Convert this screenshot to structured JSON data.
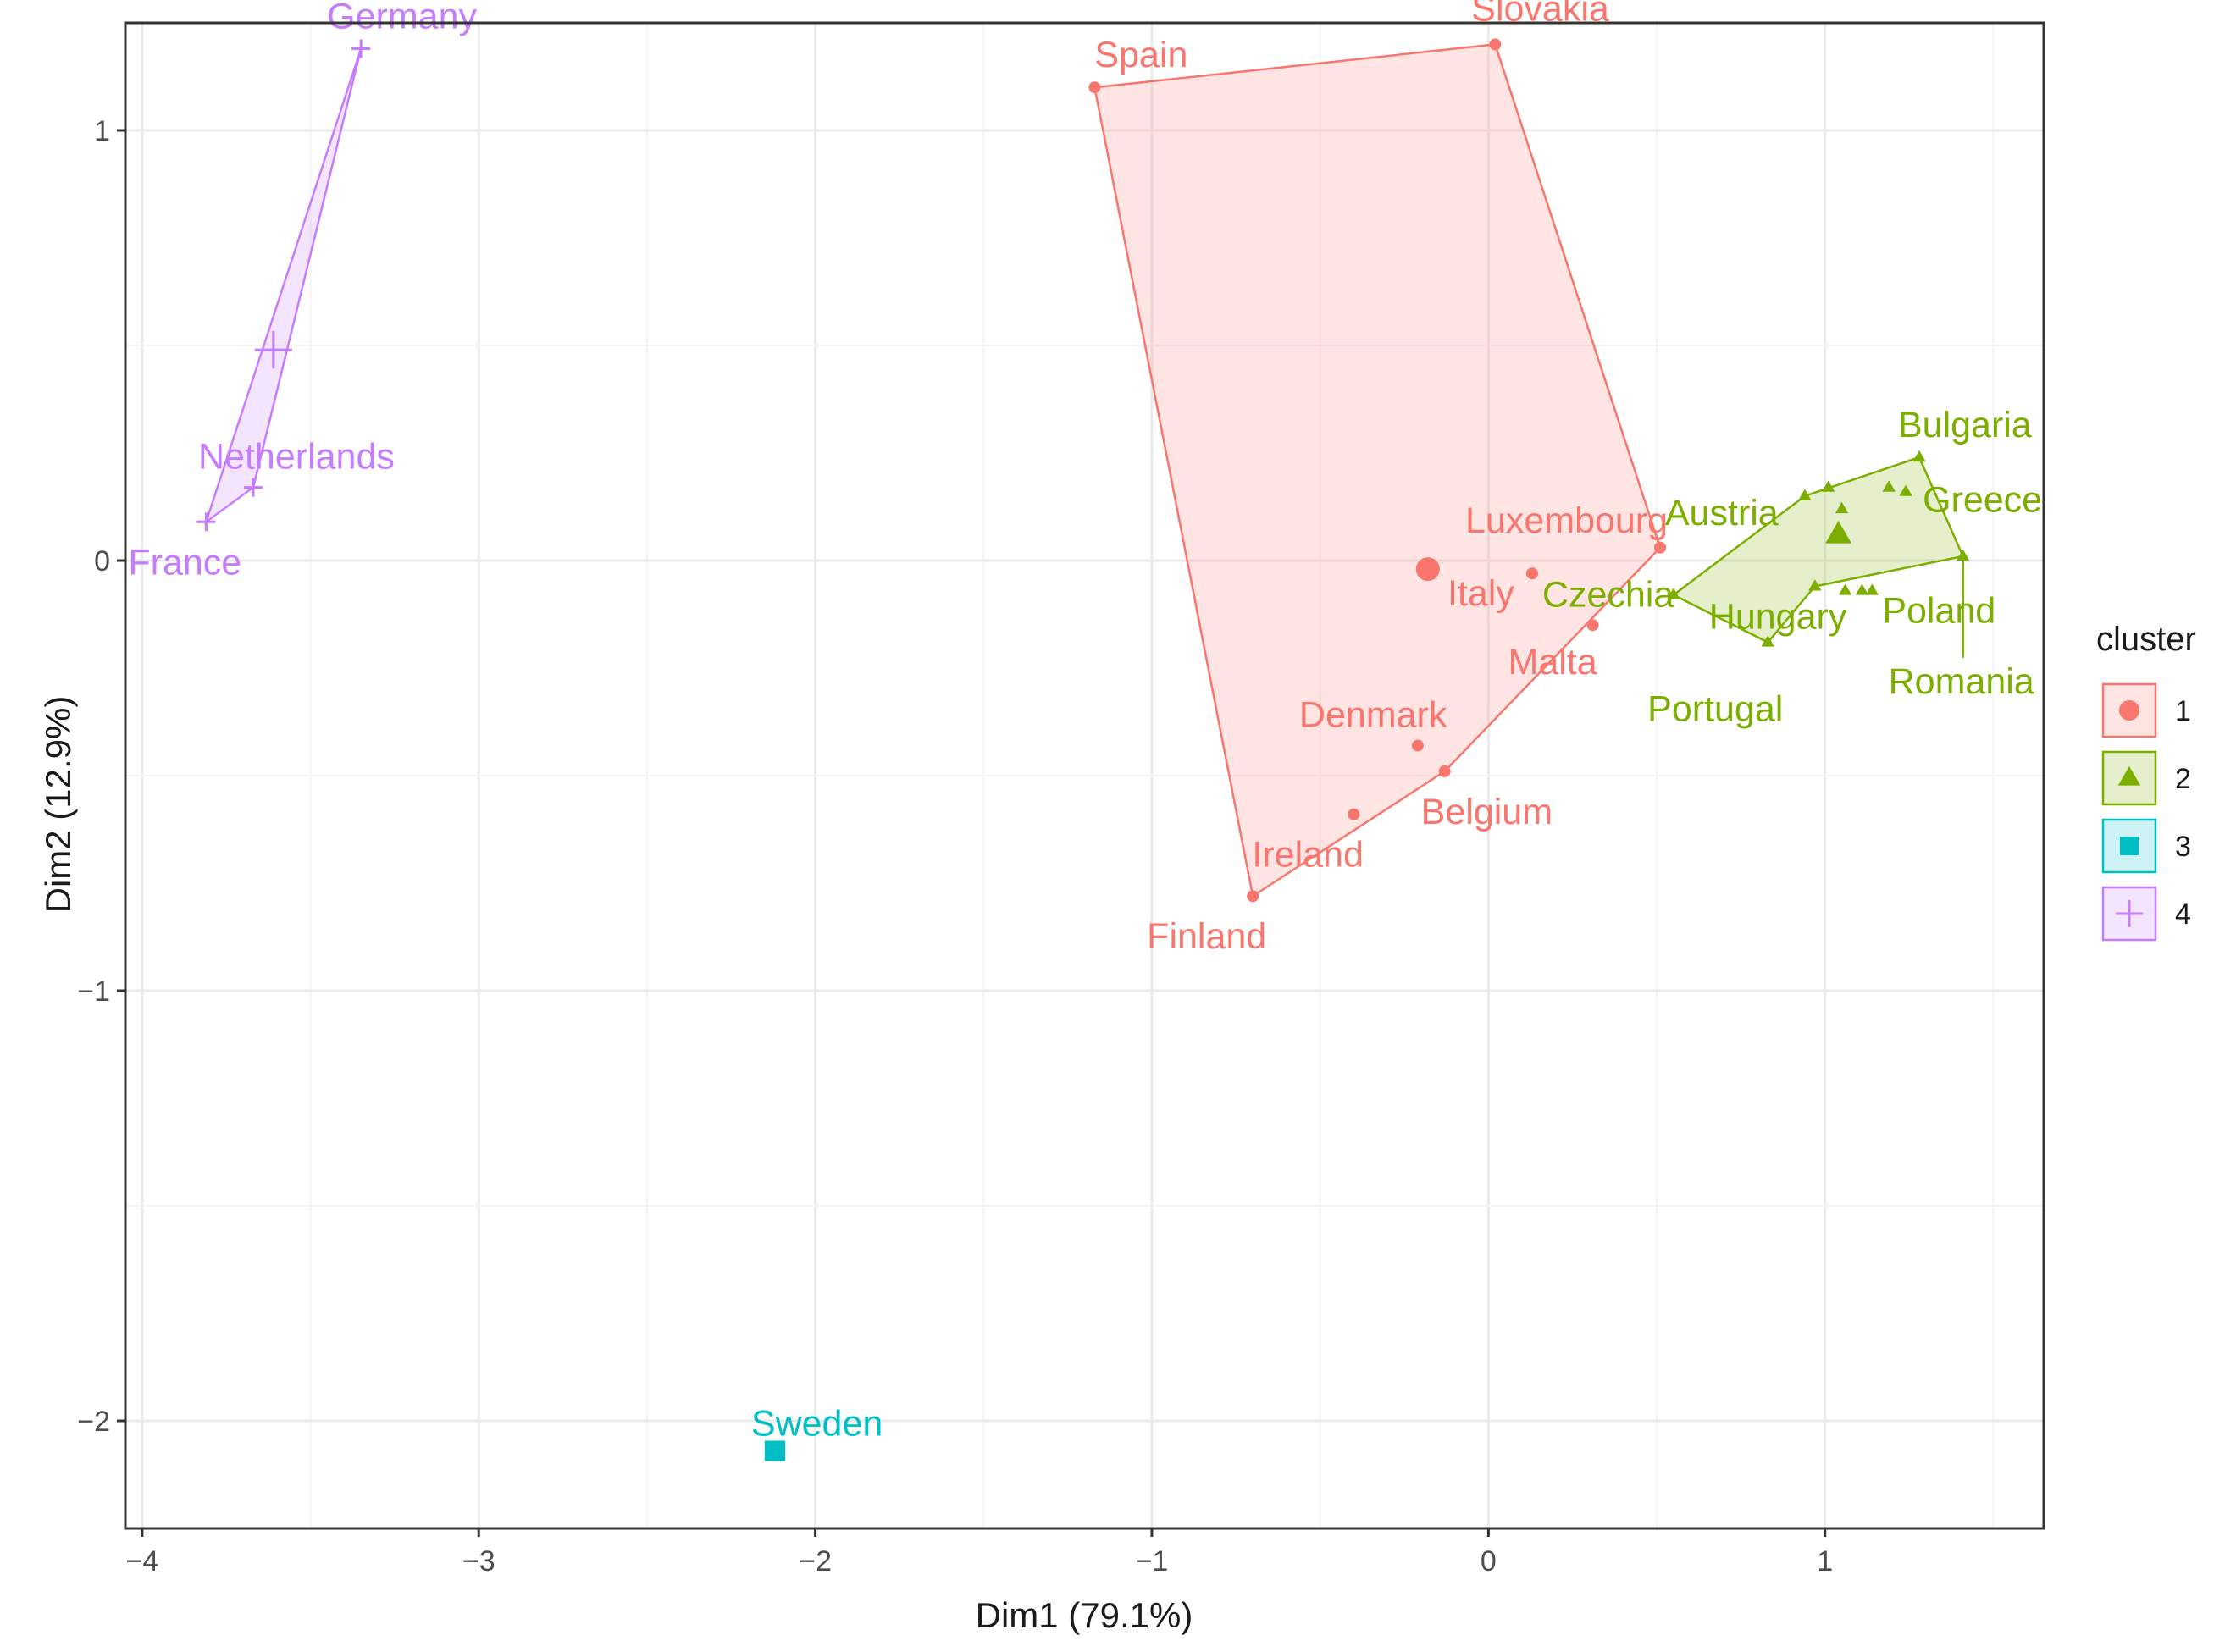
{
  "chart_data": {
    "type": "scatter",
    "title": "",
    "xlabel": "Dim1 (79.1%)",
    "ylabel": "Dim2 (12.9%)",
    "xlim": [
      -4.05,
      1.65
    ],
    "ylim": [
      -2.25,
      1.25
    ],
    "x_ticks": [
      -4,
      -3,
      -2,
      -1,
      0,
      1
    ],
    "y_ticks": [
      -2,
      -1,
      0,
      1
    ],
    "x_tick_labels": [
      "−4",
      "−3",
      "−2",
      "−1",
      "0",
      "1"
    ],
    "y_tick_labels": [
      "−2",
      "−1",
      "0",
      "1"
    ],
    "grid": true,
    "legend": {
      "title": "cluster",
      "position": "right",
      "entries": [
        {
          "label": "1",
          "shape": "circle",
          "color": "#F8766D"
        },
        {
          "label": "2",
          "shape": "triangle",
          "color": "#7CAE00"
        },
        {
          "label": "3",
          "shape": "square",
          "color": "#00BFC4"
        },
        {
          "label": "4",
          "shape": "cross",
          "color": "#C77CFF"
        }
      ]
    },
    "series": [
      {
        "name": "1",
        "color": "#F8766D",
        "shape": "circle",
        "hull": [
          "Spain",
          "Slovakia",
          "Luxembourg",
          "Belgium",
          "Finland"
        ],
        "centroid": {
          "x": -0.18,
          "y": -0.02
        },
        "points": [
          {
            "label": "Spain",
            "x": -1.17,
            "y": 1.1
          },
          {
            "label": "Slovakia",
            "x": 0.02,
            "y": 1.2
          },
          {
            "label": "Luxembourg",
            "x": 0.51,
            "y": 0.03
          },
          {
            "label": "Italy",
            "x": 0.13,
            "y": -0.03
          },
          {
            "label": "Malta",
            "x": 0.31,
            "y": -0.15
          },
          {
            "label": "Denmark",
            "x": -0.21,
            "y": -0.43
          },
          {
            "label": "Belgium",
            "x": -0.13,
            "y": -0.49
          },
          {
            "label": "Ireland",
            "x": -0.4,
            "y": -0.59
          },
          {
            "label": "Finland",
            "x": -0.7,
            "y": -0.78
          }
        ]
      },
      {
        "name": "2",
        "color": "#7CAE00",
        "shape": "triangle",
        "hull": [
          "Czechia",
          "Austria",
          "Bulgaria",
          "Romania",
          "Hungary",
          "Portugal"
        ],
        "centroid": {
          "x": 1.04,
          "y": 0.06
        },
        "points": [
          {
            "label": "Bulgaria",
            "x": 1.28,
            "y": 0.24
          },
          {
            "label": "Greece",
            "x": 1.24,
            "y": 0.16
          },
          {
            "label": "Austria",
            "x": 0.94,
            "y": 0.15
          },
          {
            "label": "Poland",
            "x": 1.14,
            "y": -0.07
          },
          {
            "label": "Czechia",
            "x": 0.55,
            "y": -0.08
          },
          {
            "label": "Hungary",
            "x": 0.97,
            "y": -0.06
          },
          {
            "label": "Portugal",
            "x": 0.83,
            "y": -0.19
          },
          {
            "label": "Romania",
            "x": 1.41,
            "y": 0.01
          },
          {
            "label": "",
            "x": 1.01,
            "y": 0.17
          },
          {
            "label": "",
            "x": 1.05,
            "y": 0.12
          },
          {
            "label": "",
            "x": 1.19,
            "y": 0.17
          },
          {
            "label": "",
            "x": 1.11,
            "y": -0.07
          },
          {
            "label": "",
            "x": 1.06,
            "y": -0.07
          }
        ]
      },
      {
        "name": "3",
        "color": "#00BFC4",
        "shape": "square",
        "hull": [],
        "centroid": {
          "x": -2.12,
          "y": -2.07
        },
        "points": [
          {
            "label": "Sweden",
            "x": -2.12,
            "y": -2.07
          }
        ]
      },
      {
        "name": "4",
        "color": "#C77CFF",
        "shape": "cross",
        "hull": [
          "Germany",
          "Netherlands",
          "France"
        ],
        "centroid": {
          "x": -3.61,
          "y": 0.49
        },
        "points": [
          {
            "label": "Germany",
            "x": -3.35,
            "y": 1.19
          },
          {
            "label": "Netherlands",
            "x": -3.67,
            "y": 0.17
          },
          {
            "label": "France",
            "x": -3.81,
            "y": 0.09
          }
        ]
      }
    ]
  }
}
